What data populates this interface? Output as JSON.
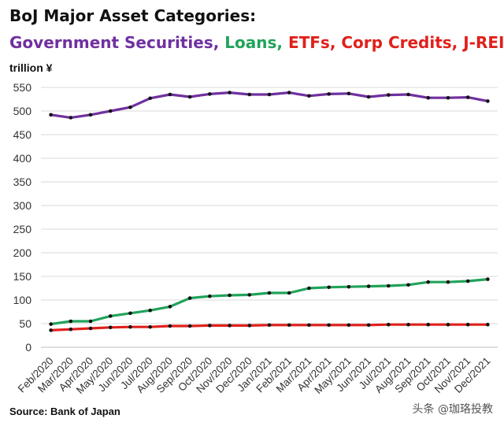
{
  "title": "BoJ Major Asset Categories:",
  "subtitle_parts": [
    {
      "text": "Government Securities,",
      "color": "#7030a0"
    },
    {
      "text": " Loans,",
      "color": "#21a35a"
    },
    {
      "text": " ETFs, Corp Credits, J-REITS",
      "color": "#e0201b"
    }
  ],
  "unit_label": "trillion ¥",
  "source": "Source: Bank  of Japan",
  "watermark": "头条 @珈珞投教",
  "chart_data": {
    "type": "line",
    "title": "BoJ Major Asset Categories:",
    "ylabel": "trillion ¥",
    "ylim": [
      0,
      550
    ],
    "yticks": [
      0,
      50,
      100,
      150,
      200,
      250,
      300,
      350,
      400,
      450,
      500,
      550
    ],
    "grid": true,
    "categories": [
      "Feb/2020",
      "Mar/2020",
      "Apr/2020",
      "May/2020",
      "Jun/2020",
      "Jul/2020",
      "Aug/2020",
      "Sep/2020",
      "Oct/2020",
      "Nov/2020",
      "Dec/2020",
      "Jan/2021",
      "Feb/2021",
      "Mar/2021",
      "Apr/2021",
      "May/2021",
      "Jun/2021",
      "Jul/2021",
      "Aug/2021",
      "Sep/2021",
      "Oct/2021",
      "Nov/2021",
      "Dec/2021"
    ],
    "series": [
      {
        "name": "Government Securities",
        "color": "#7030a0",
        "values": [
          492,
          486,
          492,
          500,
          508,
          527,
          535,
          530,
          536,
          539,
          535,
          535,
          539,
          532,
          536,
          537,
          530,
          534,
          535,
          528,
          528,
          529,
          521
        ]
      },
      {
        "name": "Loans",
        "color": "#21a35a",
        "values": [
          49,
          55,
          55,
          66,
          72,
          78,
          86,
          104,
          108,
          110,
          111,
          115,
          115,
          125,
          127,
          128,
          129,
          130,
          132,
          138,
          138,
          140,
          144
        ]
      },
      {
        "name": "ETFs, Corp Credits, J-REITS",
        "color": "#e0201b",
        "values": [
          36,
          38,
          40,
          42,
          43,
          43,
          45,
          45,
          46,
          46,
          46,
          47,
          47,
          47,
          47,
          47,
          47,
          48,
          48,
          48,
          48,
          48,
          48
        ]
      }
    ]
  }
}
